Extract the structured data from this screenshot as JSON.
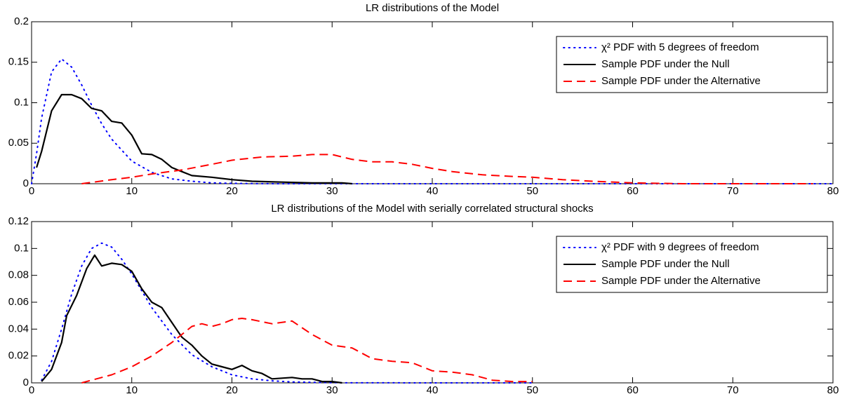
{
  "chart_data": [
    {
      "type": "line",
      "title": "LR distributions of the Model",
      "xlim": [
        0,
        80
      ],
      "xticks": [
        0,
        10,
        20,
        30,
        40,
        50,
        60,
        70,
        80
      ],
      "ylim": [
        0,
        0.2
      ],
      "yticks": [
        0,
        0.05,
        0.1,
        0.15,
        0.2
      ],
      "legend": "upper right",
      "series": [
        {
          "name": "χ² PDF with 5 degrees of freedom",
          "color": "#0000ff",
          "style": "dotted",
          "x": [
            0,
            0.5,
            1,
            2,
            3,
            4,
            5,
            6,
            7,
            8,
            10,
            12,
            14,
            16,
            18,
            20,
            22,
            25,
            30,
            40,
            50,
            60,
            70,
            80
          ],
          "values": [
            0,
            0.037,
            0.081,
            0.138,
            0.154,
            0.144,
            0.122,
            0.097,
            0.074,
            0.055,
            0.028,
            0.014,
            0.006,
            0.003,
            0.001,
            0.0005,
            0.0002,
            0,
            0,
            0,
            0,
            0,
            0,
            0
          ]
        },
        {
          "name": "Sample PDF under the Null",
          "color": "#000000",
          "style": "solid",
          "x": [
            0.5,
            1,
            2,
            3,
            4,
            5,
            6,
            7,
            8,
            9,
            10,
            11,
            12,
            13,
            14,
            15,
            16,
            18,
            20,
            22,
            25,
            28,
            31,
            32
          ],
          "values": [
            0.02,
            0.04,
            0.09,
            0.11,
            0.11,
            0.105,
            0.093,
            0.09,
            0.077,
            0.075,
            0.06,
            0.037,
            0.036,
            0.03,
            0.02,
            0.015,
            0.01,
            0.008,
            0.005,
            0.003,
            0.002,
            0.001,
            0.001,
            0
          ]
        },
        {
          "name": "Sample PDF under the Alternative",
          "color": "#ff0000",
          "style": "dashed",
          "x": [
            5,
            8,
            10,
            12,
            15,
            18,
            20,
            23,
            26,
            28,
            30,
            32,
            34,
            36,
            38,
            40,
            42,
            45,
            48,
            50,
            53,
            56,
            60,
            65,
            78
          ],
          "values": [
            0,
            0.005,
            0.008,
            0.012,
            0.017,
            0.024,
            0.029,
            0.033,
            0.034,
            0.036,
            0.036,
            0.03,
            0.027,
            0.027,
            0.024,
            0.019,
            0.015,
            0.011,
            0.009,
            0.008,
            0.005,
            0.003,
            0.001,
            0,
            0
          ]
        }
      ]
    },
    {
      "type": "line",
      "title": "LR distributions of the Model with serially correlated structural shocks",
      "xlim": [
        0,
        80
      ],
      "xticks": [
        0,
        10,
        20,
        30,
        40,
        50,
        60,
        70,
        80
      ],
      "ylim": [
        0,
        0.12
      ],
      "yticks": [
        0,
        0.02,
        0.04,
        0.06,
        0.08,
        0.1,
        0.12
      ],
      "legend": "upper right",
      "series": [
        {
          "name": "χ² PDF with 9 degrees of freedom",
          "color": "#0000ff",
          "style": "dotted",
          "x": [
            1,
            2,
            3,
            4,
            5,
            6,
            7,
            8,
            9,
            10,
            12,
            14,
            16,
            18,
            20,
            22,
            24,
            26,
            30,
            40,
            50
          ],
          "values": [
            0.002,
            0.016,
            0.04,
            0.066,
            0.087,
            0.1,
            0.104,
            0.101,
            0.092,
            0.081,
            0.056,
            0.036,
            0.021,
            0.012,
            0.006,
            0.003,
            0.0015,
            0.0007,
            0.0001,
            0,
            0
          ]
        },
        {
          "name": "Sample PDF under the Null",
          "color": "#000000",
          "style": "solid",
          "x": [
            1,
            2,
            3,
            3.5,
            4.5,
            5.5,
            6.3,
            7,
            8,
            9,
            10,
            11,
            12,
            13,
            14,
            15,
            16,
            17,
            18,
            19,
            20,
            21,
            22,
            23,
            24,
            26,
            27,
            28,
            29,
            30,
            31
          ],
          "values": [
            0.001,
            0.01,
            0.03,
            0.05,
            0.065,
            0.085,
            0.095,
            0.087,
            0.089,
            0.088,
            0.083,
            0.07,
            0.06,
            0.056,
            0.045,
            0.034,
            0.028,
            0.02,
            0.014,
            0.012,
            0.01,
            0.013,
            0.009,
            0.007,
            0.003,
            0.004,
            0.003,
            0.003,
            0.001,
            0.001,
            0
          ]
        },
        {
          "name": "Sample PDF under the Alternative",
          "color": "#ff0000",
          "style": "dashed",
          "x": [
            5,
            8,
            10,
            12,
            14,
            16,
            17,
            18,
            19,
            20,
            21,
            22,
            24,
            26,
            28,
            30,
            32,
            34,
            36,
            38,
            40,
            42,
            44,
            46,
            48,
            50
          ],
          "values": [
            0,
            0.006,
            0.012,
            0.02,
            0.03,
            0.042,
            0.044,
            0.042,
            0.044,
            0.047,
            0.048,
            0.047,
            0.044,
            0.046,
            0.036,
            0.028,
            0.026,
            0.018,
            0.016,
            0.015,
            0.009,
            0.008,
            0.006,
            0.002,
            0.001,
            0.001
          ]
        }
      ]
    }
  ]
}
